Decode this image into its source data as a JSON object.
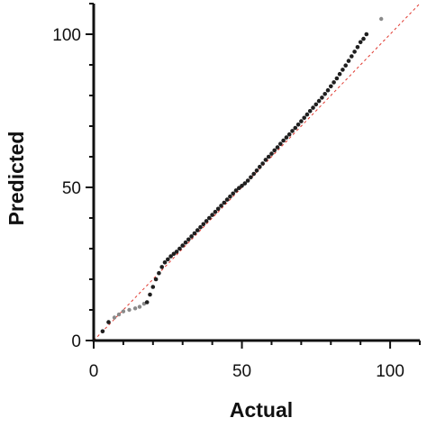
{
  "colors": {
    "axis": "#111111",
    "point": "#1f1f1f",
    "point_light": "#8a8a8a",
    "reference_line": "#e0382f"
  },
  "chart_data": {
    "type": "scatter",
    "title": "",
    "xlabel": "Actual",
    "ylabel": "Predicted",
    "xlim": [
      0,
      110
    ],
    "ylim": [
      0,
      110
    ],
    "x_ticks": [
      "0",
      "50",
      "100"
    ],
    "y_ticks": [
      "0",
      "50",
      "100"
    ],
    "grid": false,
    "legend": "none",
    "reference_line": {
      "style": "dashed",
      "from": [
        0,
        0
      ],
      "to": [
        110,
        110
      ]
    },
    "series": [
      {
        "points": [
          [
            3,
            3
          ],
          [
            5,
            6
          ],
          [
            7,
            7.5
          ],
          [
            8.5,
            8.5
          ],
          [
            10,
            9.5
          ],
          [
            12,
            10
          ],
          [
            14,
            10.5
          ],
          [
            15.5,
            11
          ],
          [
            17,
            12
          ],
          [
            18,
            12.5
          ],
          [
            19,
            15
          ],
          [
            20,
            17.5
          ],
          [
            21,
            20
          ],
          [
            22,
            22
          ],
          [
            23,
            24
          ],
          [
            24,
            25.5
          ],
          [
            25,
            26.5
          ],
          [
            26,
            27.5
          ],
          [
            27,
            28.3
          ],
          [
            28,
            29
          ],
          [
            29,
            30
          ],
          [
            30,
            31
          ],
          [
            31,
            32
          ],
          [
            32,
            33
          ],
          [
            33,
            34
          ],
          [
            34,
            35
          ],
          [
            35,
            36
          ],
          [
            36,
            37
          ],
          [
            37,
            38
          ],
          [
            38,
            39
          ],
          [
            39,
            40
          ],
          [
            40,
            41
          ],
          [
            41,
            42
          ],
          [
            42,
            43
          ],
          [
            43,
            44
          ],
          [
            44,
            45
          ],
          [
            45,
            46
          ],
          [
            46,
            47
          ],
          [
            47,
            48
          ],
          [
            48,
            49
          ],
          [
            49,
            49.8
          ],
          [
            50,
            50.5
          ],
          [
            51,
            51.3
          ],
          [
            52,
            52.2
          ],
          [
            53,
            53.3
          ],
          [
            54,
            54.4
          ],
          [
            55,
            55.5
          ],
          [
            56,
            56.7
          ],
          [
            57,
            57.8
          ],
          [
            58,
            59
          ],
          [
            59,
            60
          ],
          [
            60,
            61
          ],
          [
            61,
            62.1
          ],
          [
            62,
            63.1
          ],
          [
            63,
            64.2
          ],
          [
            64,
            65.3
          ],
          [
            65,
            66.3
          ],
          [
            66,
            67.3
          ],
          [
            67,
            68.4
          ],
          [
            68,
            69.4
          ],
          [
            69,
            70.5
          ],
          [
            70,
            71.6
          ],
          [
            71,
            72.7
          ],
          [
            72,
            73.8
          ],
          [
            73,
            74.9
          ],
          [
            74,
            76
          ],
          [
            75,
            77.1
          ],
          [
            76,
            78.2
          ],
          [
            77,
            79.3
          ],
          [
            78,
            80.5
          ],
          [
            79,
            81.7
          ],
          [
            80,
            83
          ],
          [
            81,
            84.3
          ],
          [
            82,
            85.6
          ],
          [
            83,
            87
          ],
          [
            84,
            88.4
          ],
          [
            85,
            89.8
          ],
          [
            86,
            91.3
          ],
          [
            87,
            92.8
          ],
          [
            88,
            94.3
          ],
          [
            89,
            95.8
          ],
          [
            90,
            97.4
          ],
          [
            91,
            98.5
          ],
          [
            92,
            100
          ],
          [
            97,
            105
          ]
        ]
      }
    ]
  }
}
